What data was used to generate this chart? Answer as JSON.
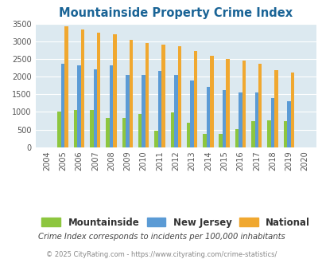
{
  "title": "Mountainside Property Crime Index",
  "years": [
    2004,
    2005,
    2006,
    2007,
    2008,
    2009,
    2010,
    2011,
    2012,
    2013,
    2014,
    2015,
    2016,
    2017,
    2018,
    2019,
    2020
  ],
  "mountainside": [
    0,
    1020,
    1060,
    1055,
    840,
    820,
    940,
    470,
    985,
    690,
    390,
    390,
    520,
    750,
    770,
    740,
    0
  ],
  "new_jersey": [
    0,
    2360,
    2320,
    2200,
    2330,
    2060,
    2060,
    2160,
    2050,
    1900,
    1710,
    1610,
    1550,
    1550,
    1400,
    1310,
    0
  ],
  "national": [
    0,
    3420,
    3330,
    3250,
    3200,
    3040,
    2950,
    2900,
    2855,
    2730,
    2580,
    2490,
    2460,
    2360,
    2195,
    2110,
    0
  ],
  "mountainside_color": "#8dc63f",
  "new_jersey_color": "#5b9bd5",
  "national_color": "#f0a830",
  "plot_bg": "#dce9f0",
  "ylim": [
    0,
    3500
  ],
  "yticks": [
    0,
    500,
    1000,
    1500,
    2000,
    2500,
    3000,
    3500
  ],
  "legend_labels": [
    "Mountainside",
    "New Jersey",
    "National"
  ],
  "footnote1": "Crime Index corresponds to incidents per 100,000 inhabitants",
  "footnote2": "© 2025 CityRating.com - https://www.cityrating.com/crime-statistics/",
  "title_color": "#1a6496",
  "footnote1_color": "#444444",
  "footnote2_color": "#888888"
}
